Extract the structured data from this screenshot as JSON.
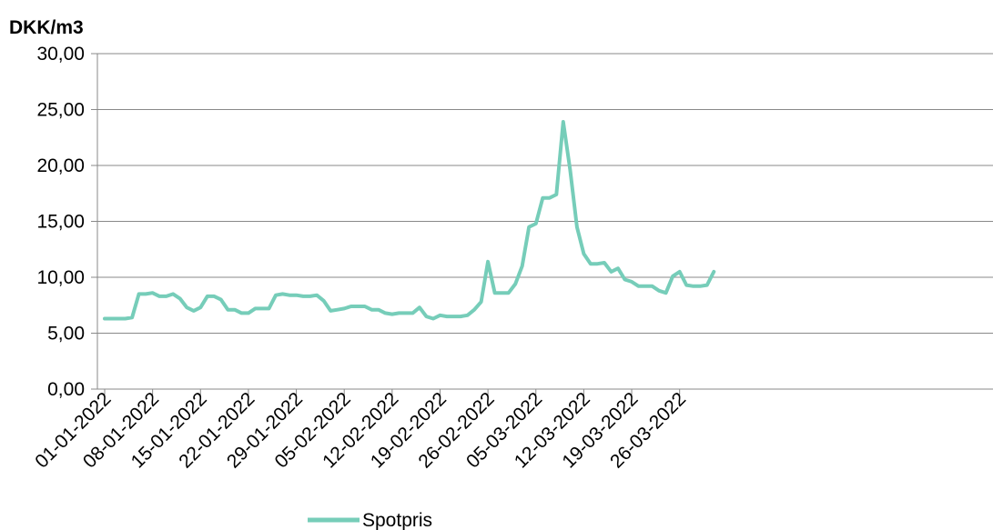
{
  "chart_data": {
    "type": "line",
    "ylabel": "DKK/m3",
    "ylim": [
      0,
      30
    ],
    "yticks": [
      "0,00",
      "5,00",
      "10,00",
      "15,00",
      "20,00",
      "25,00",
      "30,00"
    ],
    "ytick_values": [
      0,
      5,
      10,
      15,
      20,
      25,
      30
    ],
    "xtick_labels": [
      "01-01-2022",
      "08-01-2022",
      "15-01-2022",
      "22-01-2022",
      "29-01-2022",
      "05-02-2022",
      "12-02-2022",
      "19-02-2022",
      "26-02-2022",
      "05-03-2022",
      "12-03-2022",
      "19-03-2022",
      "26-03-2022"
    ],
    "x": [
      "01-01-2022",
      "02-01-2022",
      "03-01-2022",
      "04-01-2022",
      "05-01-2022",
      "06-01-2022",
      "07-01-2022",
      "08-01-2022",
      "09-01-2022",
      "10-01-2022",
      "11-01-2022",
      "12-01-2022",
      "13-01-2022",
      "14-01-2022",
      "15-01-2022",
      "16-01-2022",
      "17-01-2022",
      "18-01-2022",
      "19-01-2022",
      "20-01-2022",
      "21-01-2022",
      "22-01-2022",
      "23-01-2022",
      "24-01-2022",
      "25-01-2022",
      "26-01-2022",
      "27-01-2022",
      "28-01-2022",
      "29-01-2022",
      "30-01-2022",
      "31-01-2022",
      "01-02-2022",
      "02-02-2022",
      "03-02-2022",
      "04-02-2022",
      "05-02-2022",
      "06-02-2022",
      "07-02-2022",
      "08-02-2022",
      "09-02-2022",
      "10-02-2022",
      "11-02-2022",
      "12-02-2022",
      "13-02-2022",
      "14-02-2022",
      "15-02-2022",
      "16-02-2022",
      "17-02-2022",
      "18-02-2022",
      "19-02-2022",
      "20-02-2022",
      "21-02-2022",
      "22-02-2022",
      "23-02-2022",
      "24-02-2022",
      "25-02-2022",
      "26-02-2022",
      "27-02-2022",
      "28-02-2022",
      "01-03-2022",
      "02-03-2022",
      "03-03-2022",
      "04-03-2022",
      "05-03-2022",
      "06-03-2022",
      "07-03-2022",
      "08-03-2022",
      "09-03-2022",
      "10-03-2022",
      "11-03-2022",
      "12-03-2022",
      "13-03-2022",
      "14-03-2022",
      "15-03-2022",
      "16-03-2022",
      "17-03-2022",
      "18-03-2022",
      "19-03-2022",
      "20-03-2022",
      "21-03-2022",
      "22-03-2022",
      "23-03-2022",
      "24-03-2022",
      "25-03-2022",
      "26-03-2022",
      "27-03-2022",
      "28-03-2022",
      "29-03-2022",
      "30-03-2022",
      "31-03-2022"
    ],
    "series": [
      {
        "name": "Spotpris",
        "color": "#76cdb9",
        "values": [
          6.3,
          6.3,
          6.3,
          6.3,
          6.4,
          8.5,
          8.5,
          8.6,
          8.3,
          8.3,
          8.5,
          8.1,
          7.3,
          7.0,
          7.3,
          8.3,
          8.3,
          8.0,
          7.1,
          7.1,
          6.8,
          6.8,
          7.2,
          7.2,
          7.2,
          8.4,
          8.5,
          8.4,
          8.4,
          8.3,
          8.3,
          8.4,
          7.9,
          7.0,
          7.1,
          7.2,
          7.4,
          7.4,
          7.4,
          7.1,
          7.1,
          6.8,
          6.7,
          6.8,
          6.8,
          6.8,
          7.3,
          6.5,
          6.3,
          6.6,
          6.5,
          6.5,
          6.5,
          6.6,
          7.1,
          7.8,
          11.4,
          8.6,
          8.6,
          8.6,
          9.4,
          11.0,
          14.5,
          14.8,
          17.1,
          17.1,
          17.4,
          23.9,
          19.6,
          14.5,
          12.1,
          11.2,
          11.2,
          11.3,
          10.5,
          10.8,
          9.8,
          9.6,
          9.2,
          9.2,
          9.2,
          8.8,
          8.6,
          10.1,
          10.5,
          9.3,
          9.2,
          9.2,
          9.3,
          10.5
        ]
      }
    ],
    "legend": "bottom",
    "grid": true
  }
}
